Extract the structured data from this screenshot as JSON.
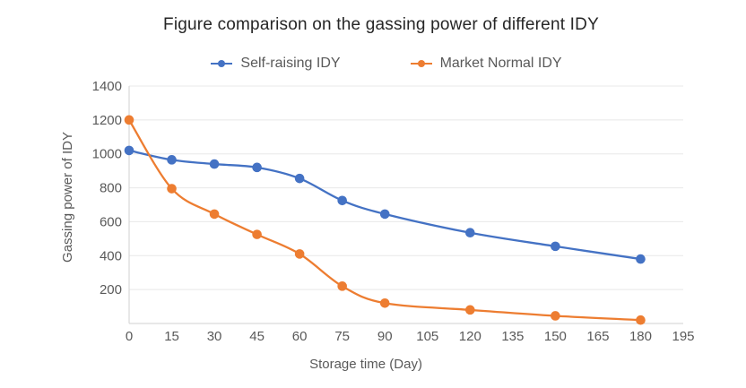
{
  "chart_data": {
    "type": "line",
    "title": "Figure comparison on the gassing power of different IDY",
    "xlabel": "Storage time (Day)",
    "ylabel": "Gassing power of IDY",
    "x": [
      0,
      15,
      30,
      45,
      60,
      75,
      90,
      120,
      150,
      180
    ],
    "series": [
      {
        "name": "Self-raising IDY",
        "color": "#4472C4",
        "values": [
          1020,
          965,
          940,
          920,
          855,
          725,
          645,
          535,
          455,
          380
        ]
      },
      {
        "name": "Market Normal IDY",
        "color": "#ED7D31",
        "values": [
          1200,
          795,
          645,
          525,
          410,
          220,
          120,
          80,
          45,
          20
        ]
      }
    ],
    "xlim": [
      0,
      195
    ],
    "ylim": [
      0,
      1400
    ],
    "x_ticks": [
      0,
      15,
      30,
      45,
      60,
      75,
      90,
      105,
      120,
      135,
      150,
      165,
      180,
      195
    ],
    "y_ticks": [
      200,
      400,
      600,
      800,
      1000,
      1200,
      1400
    ],
    "grid": "horizontal",
    "legend_position": "top",
    "line_style": "smooth",
    "marker": "circle",
    "colors": {
      "title_text": "#262626",
      "axis_text": "#595959",
      "gridline": "#e8e8e8",
      "axis_line": "#d2d2d2",
      "background": "#ffffff"
    }
  }
}
